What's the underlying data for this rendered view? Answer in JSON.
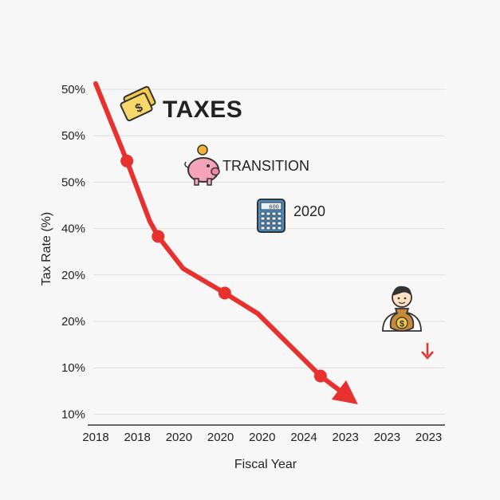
{
  "chart_data": {
    "type": "line",
    "title": "",
    "xlabel": "Fiscal Year",
    "ylabel": "Tax Rate (%)",
    "x_tick_labels": [
      "2018",
      "2018",
      "2020",
      "2020",
      "2020",
      "2024",
      "2023",
      "2023",
      "2023"
    ],
    "y_tick_labels": [
      "50%",
      "50%",
      "50%",
      "40%",
      "20%",
      "20%",
      "10%",
      "10%"
    ],
    "grid": true,
    "legend": "none",
    "line_color": "#e8312f",
    "series": [
      {
        "points": [
          {
            "x": 0.0,
            "y": 0.905
          },
          {
            "x": 0.75,
            "y": 0.7
          },
          {
            "x": 1.3,
            "y": 0.54
          },
          {
            "x": 1.5,
            "y": 0.5
          },
          {
            "x": 2.1,
            "y": 0.415
          },
          {
            "x": 3.1,
            "y": 0.35
          },
          {
            "x": 3.9,
            "y": 0.295
          },
          {
            "x": 5.4,
            "y": 0.13
          },
          {
            "x": 6.3,
            "y": 0.055
          }
        ],
        "markers": [
          {
            "x": 0.75,
            "y": 0.7
          },
          {
            "x": 1.5,
            "y": 0.5
          },
          {
            "x": 3.1,
            "y": 0.35
          },
          {
            "x": 5.4,
            "y": 0.13
          }
        ]
      }
    ],
    "annotations": [
      {
        "text": "TAXES",
        "icon": "money-envelope-icon",
        "style": "big"
      },
      {
        "text": "TRANSITION",
        "icon": "piggy-bank-icon",
        "style": "normal"
      },
      {
        "text": "2020",
        "icon": "calculator-icon",
        "style": "normal"
      },
      {
        "text": "",
        "icon": "person-money-bag-icon",
        "style": "normal"
      }
    ],
    "calculator_display": "600",
    "money_bag_symbol": "$"
  }
}
